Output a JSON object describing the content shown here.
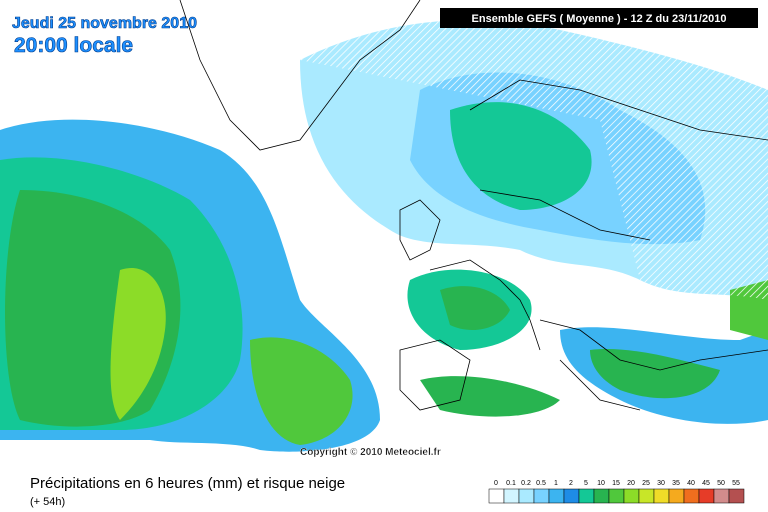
{
  "header": {
    "date": "Jeudi 25 novembre 2010",
    "time": "20:00 locale",
    "model": "Ensemble GEFS ( Moyenne )  -  12 Z du 23/11/2010"
  },
  "copyright": "Copyright © 2010 Meteociel.fr",
  "legend": {
    "title": "Précipitations en 6 heures (mm) et risque neige",
    "lead": "(+ 54h)",
    "items": [
      {
        "label": 0,
        "color": "#ffffff"
      },
      {
        "label": 0.1,
        "color": "#d2f5ff"
      },
      {
        "label": 0.2,
        "color": "#aaeaff"
      },
      {
        "label": 0.5,
        "color": "#78d2ff"
      },
      {
        "label": 1,
        "color": "#3cb4f0"
      },
      {
        "label": 2,
        "color": "#1e8ce6"
      },
      {
        "label": 5,
        "color": "#14c896"
      },
      {
        "label": 10,
        "color": "#28b450"
      },
      {
        "label": 15,
        "color": "#50c83c"
      },
      {
        "label": 20,
        "color": "#8cdc28"
      },
      {
        "label": 25,
        "color": "#c8e628"
      },
      {
        "label": 30,
        "color": "#f0dc28"
      },
      {
        "label": 35,
        "color": "#f5aa1e"
      },
      {
        "label": 40,
        "color": "#f06e1e"
      },
      {
        "label": 45,
        "color": "#e63c28"
      },
      {
        "label": 50,
        "color": "#d28c8c"
      },
      {
        "label": 55,
        "color": "#b45050"
      }
    ]
  }
}
